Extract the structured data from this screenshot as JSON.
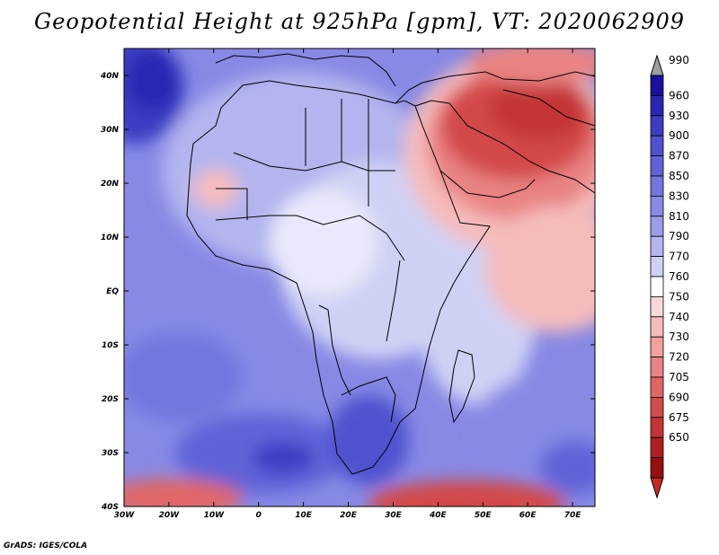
{
  "title": "Geopotential Height at 925hPa [gpm], VT: 2020062909",
  "credit": "GrADS: IGES/COLA",
  "map": {
    "lat_labels": [
      "40N",
      "30N",
      "20N",
      "10N",
      "EQ",
      "10S",
      "20S",
      "30S",
      "40S"
    ],
    "lon_labels": [
      "30W",
      "20W",
      "10W",
      "0",
      "10E",
      "20E",
      "30E",
      "40E",
      "50E",
      "60E",
      "70E"
    ],
    "lon_range": [
      -30,
      75
    ],
    "lat_range": [
      -40,
      45
    ]
  },
  "colorbar": {
    "levels": [
      "990",
      "960",
      "930",
      "900",
      "870",
      "850",
      "830",
      "810",
      "790",
      "770",
      "760",
      "750",
      "740",
      "730",
      "720",
      "705",
      "690",
      "675",
      "650"
    ],
    "colors": [
      "#1a0fa0",
      "#2a26b4",
      "#3c3cc4",
      "#4f51cf",
      "#6163d8",
      "#7376df",
      "#8789e5",
      "#9b9ee9",
      "#b2b5ee",
      "#cfd1f4",
      "#ffffff",
      "#fad8d8",
      "#f5bcbc",
      "#f0a0a0",
      "#e98383",
      "#e06666",
      "#d34a4a",
      "#c43434",
      "#b01f1f",
      "#961010"
    ],
    "top_arrow_color": "#a0a0a0",
    "bottom_arrow_color": "#c82828"
  }
}
